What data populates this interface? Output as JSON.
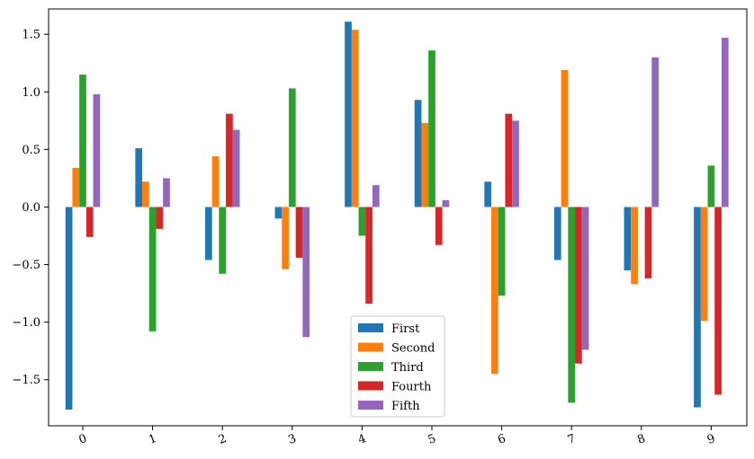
{
  "chart_data": {
    "type": "bar",
    "title": "",
    "xlabel": "",
    "ylabel": "",
    "categories": [
      "0",
      "1",
      "2",
      "3",
      "4",
      "5",
      "6",
      "7",
      "8",
      "9"
    ],
    "ylim": [
      -1.9,
      1.72
    ],
    "yticks": [
      {
        "value": -1.5,
        "label": "−1.5"
      },
      {
        "value": -1.0,
        "label": "−1.0"
      },
      {
        "value": -0.5,
        "label": "−0.5"
      },
      {
        "value": 0.0,
        "label": "0.0"
      },
      {
        "value": 0.5,
        "label": "0.5"
      },
      {
        "value": 1.0,
        "label": "1.0"
      },
      {
        "value": 1.5,
        "label": "1.5"
      }
    ],
    "grid": false,
    "legend_position": "bottom-center",
    "series": [
      {
        "name": "First",
        "color": "#1f77b4",
        "values": [
          -1.76,
          0.51,
          -0.46,
          -0.1,
          1.61,
          0.93,
          0.22,
          -0.46,
          -0.55,
          -1.74
        ]
      },
      {
        "name": "Second",
        "color": "#ff7f0e",
        "values": [
          0.34,
          0.22,
          0.44,
          -0.54,
          1.54,
          0.73,
          -1.45,
          1.19,
          -0.67,
          -0.99
        ]
      },
      {
        "name": "Third",
        "color": "#2ca02c",
        "values": [
          1.15,
          -1.08,
          -0.58,
          1.03,
          -0.25,
          1.36,
          -0.77,
          -1.7,
          0.0,
          0.36
        ]
      },
      {
        "name": "Fourth",
        "color": "#d62728",
        "values": [
          -0.26,
          -0.19,
          0.81,
          -0.44,
          -0.84,
          -0.33,
          0.81,
          -1.36,
          -0.62,
          -1.63
        ]
      },
      {
        "name": "Fifth",
        "color": "#9467bd",
        "values": [
          0.98,
          0.25,
          0.67,
          -1.13,
          0.19,
          0.06,
          0.75,
          -1.24,
          1.3,
          1.47
        ]
      }
    ]
  }
}
